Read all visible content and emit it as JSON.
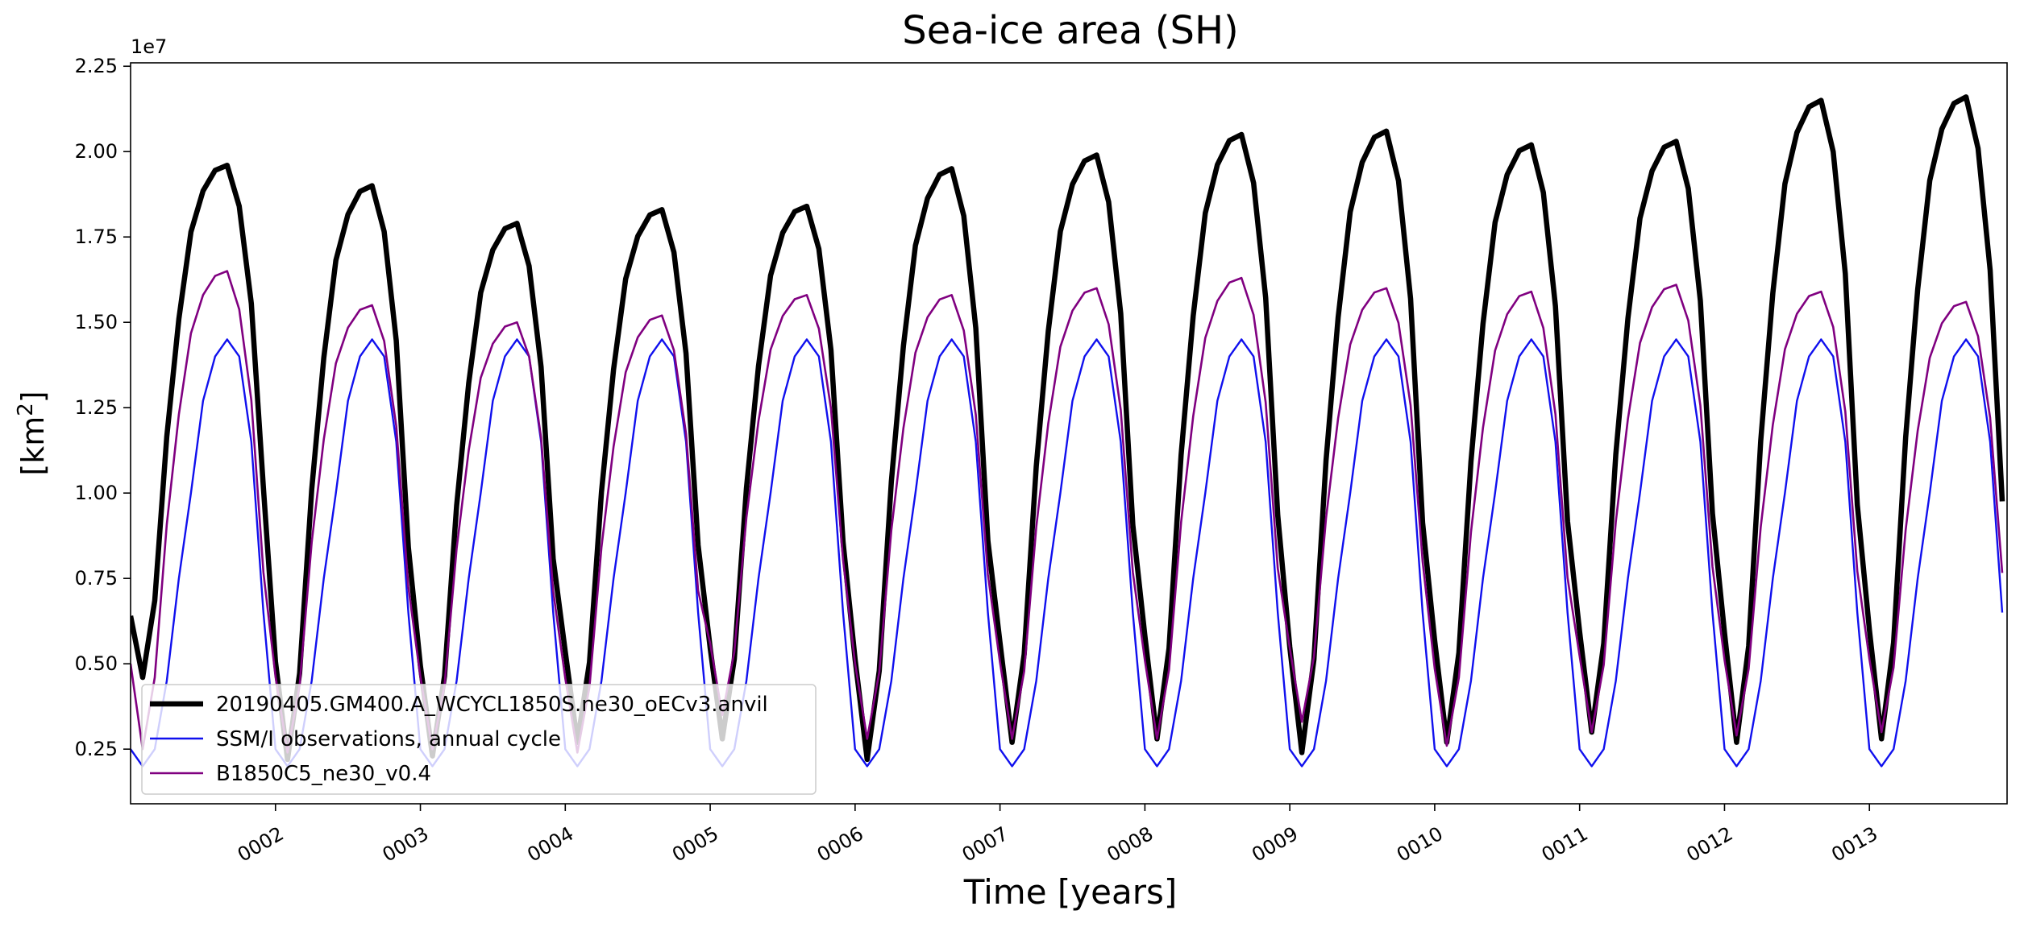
{
  "chart_data": {
    "type": "line",
    "title": "Sea-ice area (SH)",
    "xlabel": "Time [years]",
    "ylabel": "[km²]",
    "ylabel_base": "[km",
    "ylabel_sup": "2",
    "ylabel_close": "]",
    "y_offset_label": "1e7",
    "xlim": [
      1.0,
      13.95
    ],
    "ylim": [
      0.9,
      22.6
    ],
    "y_units": "millions of km² (×1e6)",
    "x_ticks": [
      2,
      3,
      4,
      5,
      6,
      7,
      8,
      9,
      10,
      11,
      12,
      13
    ],
    "x_tick_labels": [
      "0002",
      "0003",
      "0004",
      "0005",
      "0006",
      "0007",
      "0008",
      "0009",
      "0010",
      "0011",
      "0012",
      "0013"
    ],
    "y_ticks": [
      2.5,
      5.0,
      7.5,
      10.0,
      12.5,
      15.0,
      17.5,
      20.0,
      22.5
    ],
    "y_tick_labels": [
      "0.25",
      "0.50",
      "0.75",
      "1.00",
      "1.25",
      "1.50",
      "1.75",
      "2.00",
      "2.25"
    ],
    "legend_position": "lower-left",
    "series": [
      {
        "name": "20190405.GM400.A_WCYCL1850S.ne30_oECv3.anvil",
        "color": "#000000",
        "linewidth": "thick",
        "peaks": [
          19.6,
          19.0,
          17.9,
          18.3,
          18.4,
          19.5,
          19.9,
          20.5,
          20.6,
          20.2,
          20.3,
          21.5,
          21.6
        ],
        "troughs": [
          4.6,
          2.2,
          2.3,
          2.7,
          2.8,
          2.2,
          2.7,
          2.8,
          2.4,
          2.7,
          3.0,
          2.7,
          2.8
        ]
      },
      {
        "name": "SSM/I observations, annual cycle",
        "color": "#1010ee",
        "linewidth": "thin",
        "annual_cycle": [
          2.5,
          2.0,
          2.5,
          4.5,
          7.5,
          10.0,
          12.7,
          14.0,
          14.5,
          14.0,
          11.5,
          6.5
        ]
      },
      {
        "name": "B1850C5_ne30_v0.4",
        "color": "#800080",
        "linewidth": "thin",
        "peaks": [
          16.5,
          15.5,
          15.0,
          15.2,
          15.8,
          15.8,
          16.0,
          16.3,
          16.0,
          15.9,
          16.1,
          15.9,
          15.6
        ],
        "troughs": [
          2.5,
          2.4,
          2.5,
          2.4,
          3.5,
          2.8,
          2.8,
          2.8,
          3.3,
          2.6,
          3.0,
          2.9,
          3.0
        ]
      }
    ]
  }
}
